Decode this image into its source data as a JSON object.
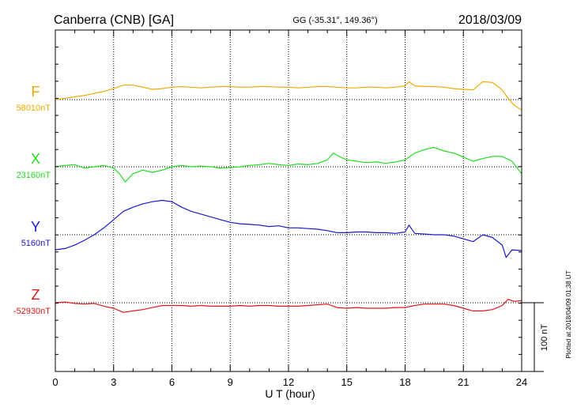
{
  "header": {
    "station": "Canberra (CNB)  [GA]",
    "coords": "GG (-35.31°, 149.36°)",
    "date": "2018/03/09"
  },
  "footer": {
    "plotted": "Plotted at 2018/04/09 01:38 UT"
  },
  "colors": {
    "F": "#f2aa00",
    "X": "#22dd22",
    "Y": "#1a1acc",
    "Z": "#dd1a1a"
  },
  "chart_data": {
    "type": "line",
    "xlabel": "U T (hour)",
    "xlim": [
      0,
      24
    ],
    "xticks": [
      0,
      3,
      6,
      9,
      12,
      15,
      18,
      21,
      24
    ],
    "xtick_labels": [
      "0",
      "3",
      "6",
      "9",
      "12",
      "15",
      "18",
      "21",
      "24"
    ],
    "grid": true,
    "scale_bar": {
      "label": "100 nT",
      "value": 100
    },
    "series": [
      {
        "name": "F",
        "baseline_label": "58010nT",
        "baseline": 58010,
        "color": "#f2aa00",
        "x": [
          0,
          0.5,
          1,
          1.5,
          2,
          2.5,
          3,
          3.5,
          4,
          4.5,
          5,
          5.5,
          6,
          6.5,
          7,
          7.5,
          8,
          8.5,
          9,
          9.5,
          10,
          10.5,
          11,
          11.5,
          12,
          12.5,
          13,
          13.5,
          14,
          14.5,
          15,
          15.5,
          16,
          16.5,
          17,
          17.5,
          18,
          18.2,
          18.5,
          19,
          19.5,
          20,
          20.5,
          21,
          21.5,
          22,
          22.5,
          23,
          23.3,
          23.6,
          24
        ],
        "values": [
          58010,
          58012,
          58014,
          58016,
          58019,
          58022,
          58026,
          58031,
          58031,
          58028,
          58025,
          58026,
          58028,
          58029,
          58028,
          58027,
          58028,
          58029,
          58029,
          58028,
          58028,
          58029,
          58029,
          58028,
          58028,
          58027,
          58028,
          58029,
          58029,
          58028,
          58027,
          58027,
          58028,
          58028,
          58027,
          58028,
          58030,
          58036,
          58030,
          58029,
          58029,
          58028,
          58026,
          58025,
          58024,
          58036,
          58035,
          58024,
          58012,
          58002,
          57995
        ]
      },
      {
        "name": "X",
        "baseline_label": "23160nT",
        "baseline": 23160,
        "color": "#22dd22",
        "x": [
          0,
          0.5,
          1,
          1.5,
          2,
          2.5,
          3,
          3.3,
          3.6,
          4,
          4.5,
          5,
          5.5,
          6,
          6.5,
          7,
          7.5,
          8,
          8.5,
          9,
          9.5,
          10,
          10.5,
          11,
          11.5,
          12,
          12.5,
          13,
          13.5,
          14,
          14.3,
          14.6,
          15,
          15.5,
          16,
          16.5,
          17,
          17.5,
          18,
          18.5,
          19,
          19.5,
          20,
          20.5,
          21,
          21.5,
          22,
          22.5,
          23,
          23.5,
          24
        ],
        "values": [
          23160,
          23162,
          23163,
          23158,
          23160,
          23162,
          23158,
          23150,
          23138,
          23150,
          23155,
          23152,
          23155,
          23160,
          23162,
          23160,
          23161,
          23160,
          23158,
          23159,
          23160,
          23162,
          23163,
          23165,
          23163,
          23162,
          23164,
          23163,
          23165,
          23170,
          23180,
          23175,
          23170,
          23168,
          23166,
          23167,
          23165,
          23167,
          23170,
          23180,
          23185,
          23188,
          23183,
          23180,
          23174,
          23168,
          23172,
          23175,
          23175,
          23168,
          23150
        ]
      },
      {
        "name": "Y",
        "baseline_label": "5160nT",
        "baseline": 5160,
        "color": "#1a1acc",
        "x": [
          0,
          0.5,
          1,
          1.5,
          2,
          2.5,
          3,
          3.5,
          4,
          4.5,
          5,
          5.5,
          6,
          6.5,
          7,
          7.5,
          8,
          8.5,
          9,
          9.5,
          10,
          10.5,
          11,
          11.5,
          12,
          12.5,
          13,
          13.5,
          14,
          14.5,
          15,
          15.5,
          16,
          16.5,
          17,
          17.5,
          18,
          18.2,
          18.5,
          19,
          19.5,
          20,
          20.5,
          21,
          21.5,
          22,
          22.5,
          23,
          23.2,
          23.5,
          24
        ],
        "values": [
          5138,
          5140,
          5145,
          5152,
          5160,
          5170,
          5182,
          5194,
          5200,
          5205,
          5208,
          5210,
          5208,
          5200,
          5194,
          5190,
          5186,
          5182,
          5178,
          5176,
          5175,
          5174,
          5172,
          5173,
          5170,
          5170,
          5169,
          5168,
          5166,
          5163,
          5163,
          5164,
          5164,
          5163,
          5163,
          5162,
          5164,
          5174,
          5162,
          5161,
          5160,
          5160,
          5158,
          5154,
          5150,
          5160,
          5156,
          5145,
          5127,
          5138,
          5137
        ]
      },
      {
        "name": "Z",
        "baseline_label": "-52930nT",
        "baseline": -52930,
        "color": "#dd1a1a",
        "x": [
          0,
          0.5,
          1,
          1.5,
          2,
          2.5,
          3,
          3.5,
          4,
          4.5,
          5,
          5.5,
          6,
          6.5,
          7,
          7.5,
          8,
          8.5,
          9,
          9.5,
          10,
          10.5,
          11,
          11.5,
          12,
          12.5,
          13,
          13.5,
          14,
          14.5,
          15,
          15.5,
          16,
          16.5,
          17,
          17.5,
          18,
          18.5,
          19,
          19.5,
          20,
          20.5,
          21,
          21.5,
          22,
          22.5,
          23,
          23.3,
          23.6,
          24
        ],
        "values": [
          -52930,
          -52929,
          -52931,
          -52932,
          -52931,
          -52935,
          -52938,
          -52944,
          -52942,
          -52940,
          -52937,
          -52934,
          -52934,
          -52934,
          -52935,
          -52934,
          -52935,
          -52935,
          -52935,
          -52934,
          -52935,
          -52934,
          -52934,
          -52935,
          -52935,
          -52935,
          -52934,
          -52933,
          -52932,
          -52937,
          -52938,
          -52937,
          -52938,
          -52938,
          -52938,
          -52937,
          -52937,
          -52934,
          -52932,
          -52932,
          -52932,
          -52934,
          -52938,
          -52942,
          -52942,
          -52940,
          -52934,
          -52925,
          -52928,
          -52927
        ]
      }
    ]
  }
}
